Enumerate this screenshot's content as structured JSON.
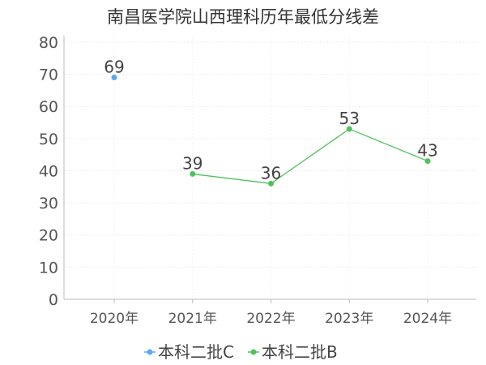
{
  "chart_data": {
    "type": "line",
    "title": "南昌医学院山西理科历年最低分线差",
    "categories": [
      "2020年",
      "2021年",
      "2022年",
      "2023年",
      "2024年"
    ],
    "y_ticks": [
      "0",
      "10",
      "20",
      "30",
      "40",
      "50",
      "60",
      "70",
      "80"
    ],
    "ylim": [
      0,
      82
    ],
    "grid": true,
    "legend_position": "bottom-center",
    "series": [
      {
        "name": "本科二批C",
        "color": "#5aa9ee",
        "values": [
          69,
          null,
          null,
          null,
          null
        ],
        "labels": [
          "69",
          "",
          "",
          "",
          ""
        ]
      },
      {
        "name": "本科二批B",
        "color": "#4ec25a",
        "values": [
          null,
          39,
          36,
          53,
          43
        ],
        "labels": [
          "",
          "39",
          "36",
          "53",
          "43"
        ]
      }
    ]
  }
}
